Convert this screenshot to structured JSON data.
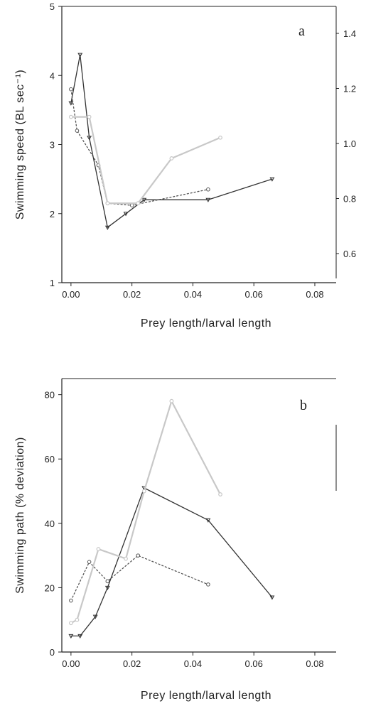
{
  "colors": {
    "axis": "#222222",
    "solid_series": "#333333",
    "dotted_series": "#555555",
    "gray_series": "#c8c8c8"
  },
  "chart_data": [
    {
      "type": "line",
      "panel_label": "a",
      "xlabel": "Prey length/larval length",
      "ylabel": "Swimming speed (BL sec⁻¹)",
      "xlim": [
        -0.003,
        0.087
      ],
      "ylim": [
        1,
        5
      ],
      "x_ticks": [
        "0.00",
        "0.02",
        "0.04",
        "0.06",
        "0.08"
      ],
      "y_ticks": [
        "1",
        "2",
        "3",
        "4",
        "5"
      ],
      "right_ticks": [
        "0.6",
        "0.8",
        "1.0",
        "1.2",
        "1.4"
      ],
      "grid": false,
      "series": [
        {
          "style": "solid",
          "marker": "triangle",
          "x": [
            0.0,
            0.003,
            0.006,
            0.012,
            0.018,
            0.024,
            0.045,
            0.066
          ],
          "y": [
            3.6,
            4.3,
            3.1,
            1.8,
            2.0,
            2.2,
            2.2,
            2.5
          ]
        },
        {
          "style": "dotted",
          "marker": "circle",
          "x": [
            0.0,
            0.002,
            0.009,
            0.012,
            0.02,
            0.045
          ],
          "y": [
            3.8,
            3.2,
            2.7,
            2.15,
            2.12,
            2.35
          ]
        },
        {
          "style": "gray",
          "marker": "circle",
          "x": [
            0.0,
            0.006,
            0.012,
            0.022,
            0.033,
            0.049
          ],
          "y": [
            3.4,
            3.4,
            2.15,
            2.15,
            2.8,
            3.1
          ]
        }
      ]
    },
    {
      "type": "line",
      "panel_label": "b",
      "xlabel": "Prey length/larval length",
      "ylabel": "Swimming path (% deviation)",
      "xlim": [
        -0.003,
        0.087
      ],
      "ylim": [
        0,
        85
      ],
      "x_ticks": [
        "0.00",
        "0.02",
        "0.04",
        "0.06",
        "0.08"
      ],
      "y_ticks": [
        "0",
        "20",
        "40",
        "60",
        "80"
      ],
      "grid": false,
      "series": [
        {
          "style": "solid",
          "marker": "triangle",
          "x": [
            0.0,
            0.003,
            0.008,
            0.012,
            0.024,
            0.045,
            0.066
          ],
          "y": [
            5,
            5,
            11,
            20,
            51,
            41,
            17
          ]
        },
        {
          "style": "dotted",
          "marker": "circle",
          "x": [
            0.0,
            0.006,
            0.012,
            0.022,
            0.045
          ],
          "y": [
            16,
            28,
            22,
            30,
            21
          ]
        },
        {
          "style": "gray",
          "marker": "circle",
          "x": [
            0.0,
            0.002,
            0.009,
            0.018,
            0.024,
            0.033,
            0.049
          ],
          "y": [
            9,
            10,
            32,
            29,
            50,
            78,
            49
          ]
        }
      ]
    }
  ]
}
